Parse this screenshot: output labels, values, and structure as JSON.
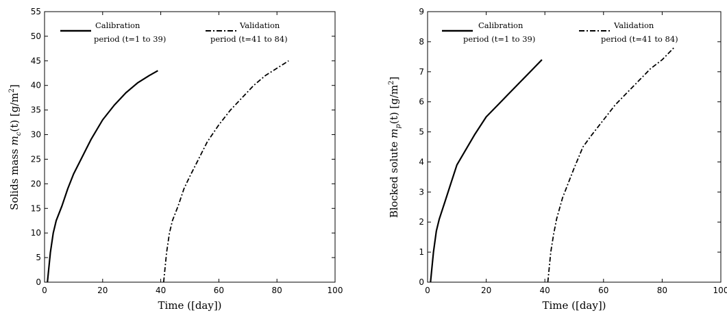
{
  "chart_data": [
    {
      "type": "line",
      "xlabel": "Time ([day])",
      "ylabel": "Solids mass m_c(t) [g/m^2]",
      "ylabel_parts": {
        "prefix": "Solids mass ",
        "var": "m",
        "sub": "c",
        "mid": "(t) [g/m",
        "sup": "2",
        "suffix": "]"
      },
      "xlim": [
        0,
        100
      ],
      "ylim": [
        0,
        55
      ],
      "xticks": [
        0,
        20,
        40,
        60,
        80,
        100
      ],
      "yticks": [
        0,
        5,
        10,
        15,
        20,
        25,
        30,
        35,
        40,
        45,
        50,
        55
      ],
      "grid": false,
      "legend_position": "top",
      "series": [
        {
          "name": "Calibration",
          "label_line2": "period (t=1 to 39)",
          "style": "solid",
          "x": [
            1,
            2,
            3,
            4,
            6,
            8,
            10,
            13,
            16,
            20,
            24,
            28,
            32,
            36,
            39
          ],
          "y": [
            0,
            6,
            10,
            12.5,
            15.5,
            19,
            22,
            25.5,
            29,
            33,
            36,
            38.5,
            40.5,
            42,
            43
          ]
        },
        {
          "name": "Validation",
          "label_line2": "period (t=41 to 84)",
          "style": "dashdot",
          "x": [
            41,
            42,
            43,
            44,
            46,
            48,
            50,
            53,
            56,
            60,
            64,
            68,
            72,
            76,
            80,
            84
          ],
          "y": [
            0,
            6,
            10,
            12.5,
            15.5,
            19,
            21.5,
            25,
            28.5,
            32,
            35,
            37.5,
            40,
            42,
            43.5,
            45
          ]
        }
      ]
    },
    {
      "type": "line",
      "xlabel": "Time ([day])",
      "ylabel": "Blocked solute m_p(t) [g/m^2]",
      "ylabel_parts": {
        "prefix": "Blocked solute ",
        "var": "m",
        "sub": "p",
        "mid": "(t) [g/m",
        "sup": "2",
        "suffix": "]"
      },
      "xlim": [
        0,
        100
      ],
      "ylim": [
        0,
        9
      ],
      "xticks": [
        0,
        20,
        40,
        60,
        80,
        100
      ],
      "yticks": [
        0,
        1,
        2,
        3,
        4,
        5,
        6,
        7,
        8,
        9
      ],
      "grid": false,
      "legend_position": "top",
      "series": [
        {
          "name": "Calibration",
          "label_line2": "period (t=1 to 39)",
          "style": "solid",
          "x": [
            1,
            2,
            3,
            4,
            6,
            8,
            10,
            13,
            16,
            20,
            24,
            28,
            32,
            36,
            39
          ],
          "y": [
            0,
            1,
            1.7,
            2.1,
            2.7,
            3.3,
            3.9,
            4.4,
            4.9,
            5.5,
            5.9,
            6.3,
            6.7,
            7.1,
            7.4
          ]
        },
        {
          "name": "Validation",
          "label_line2": "period (t=41 to 84)",
          "style": "dashdot",
          "x": [
            41,
            42,
            43,
            44,
            46,
            48,
            50,
            53,
            56,
            60,
            64,
            68,
            72,
            76,
            80,
            84
          ],
          "y": [
            0,
            1,
            1.6,
            2.1,
            2.8,
            3.3,
            3.8,
            4.5,
            4.9,
            5.4,
            5.9,
            6.3,
            6.7,
            7.1,
            7.4,
            7.8
          ]
        }
      ]
    }
  ]
}
